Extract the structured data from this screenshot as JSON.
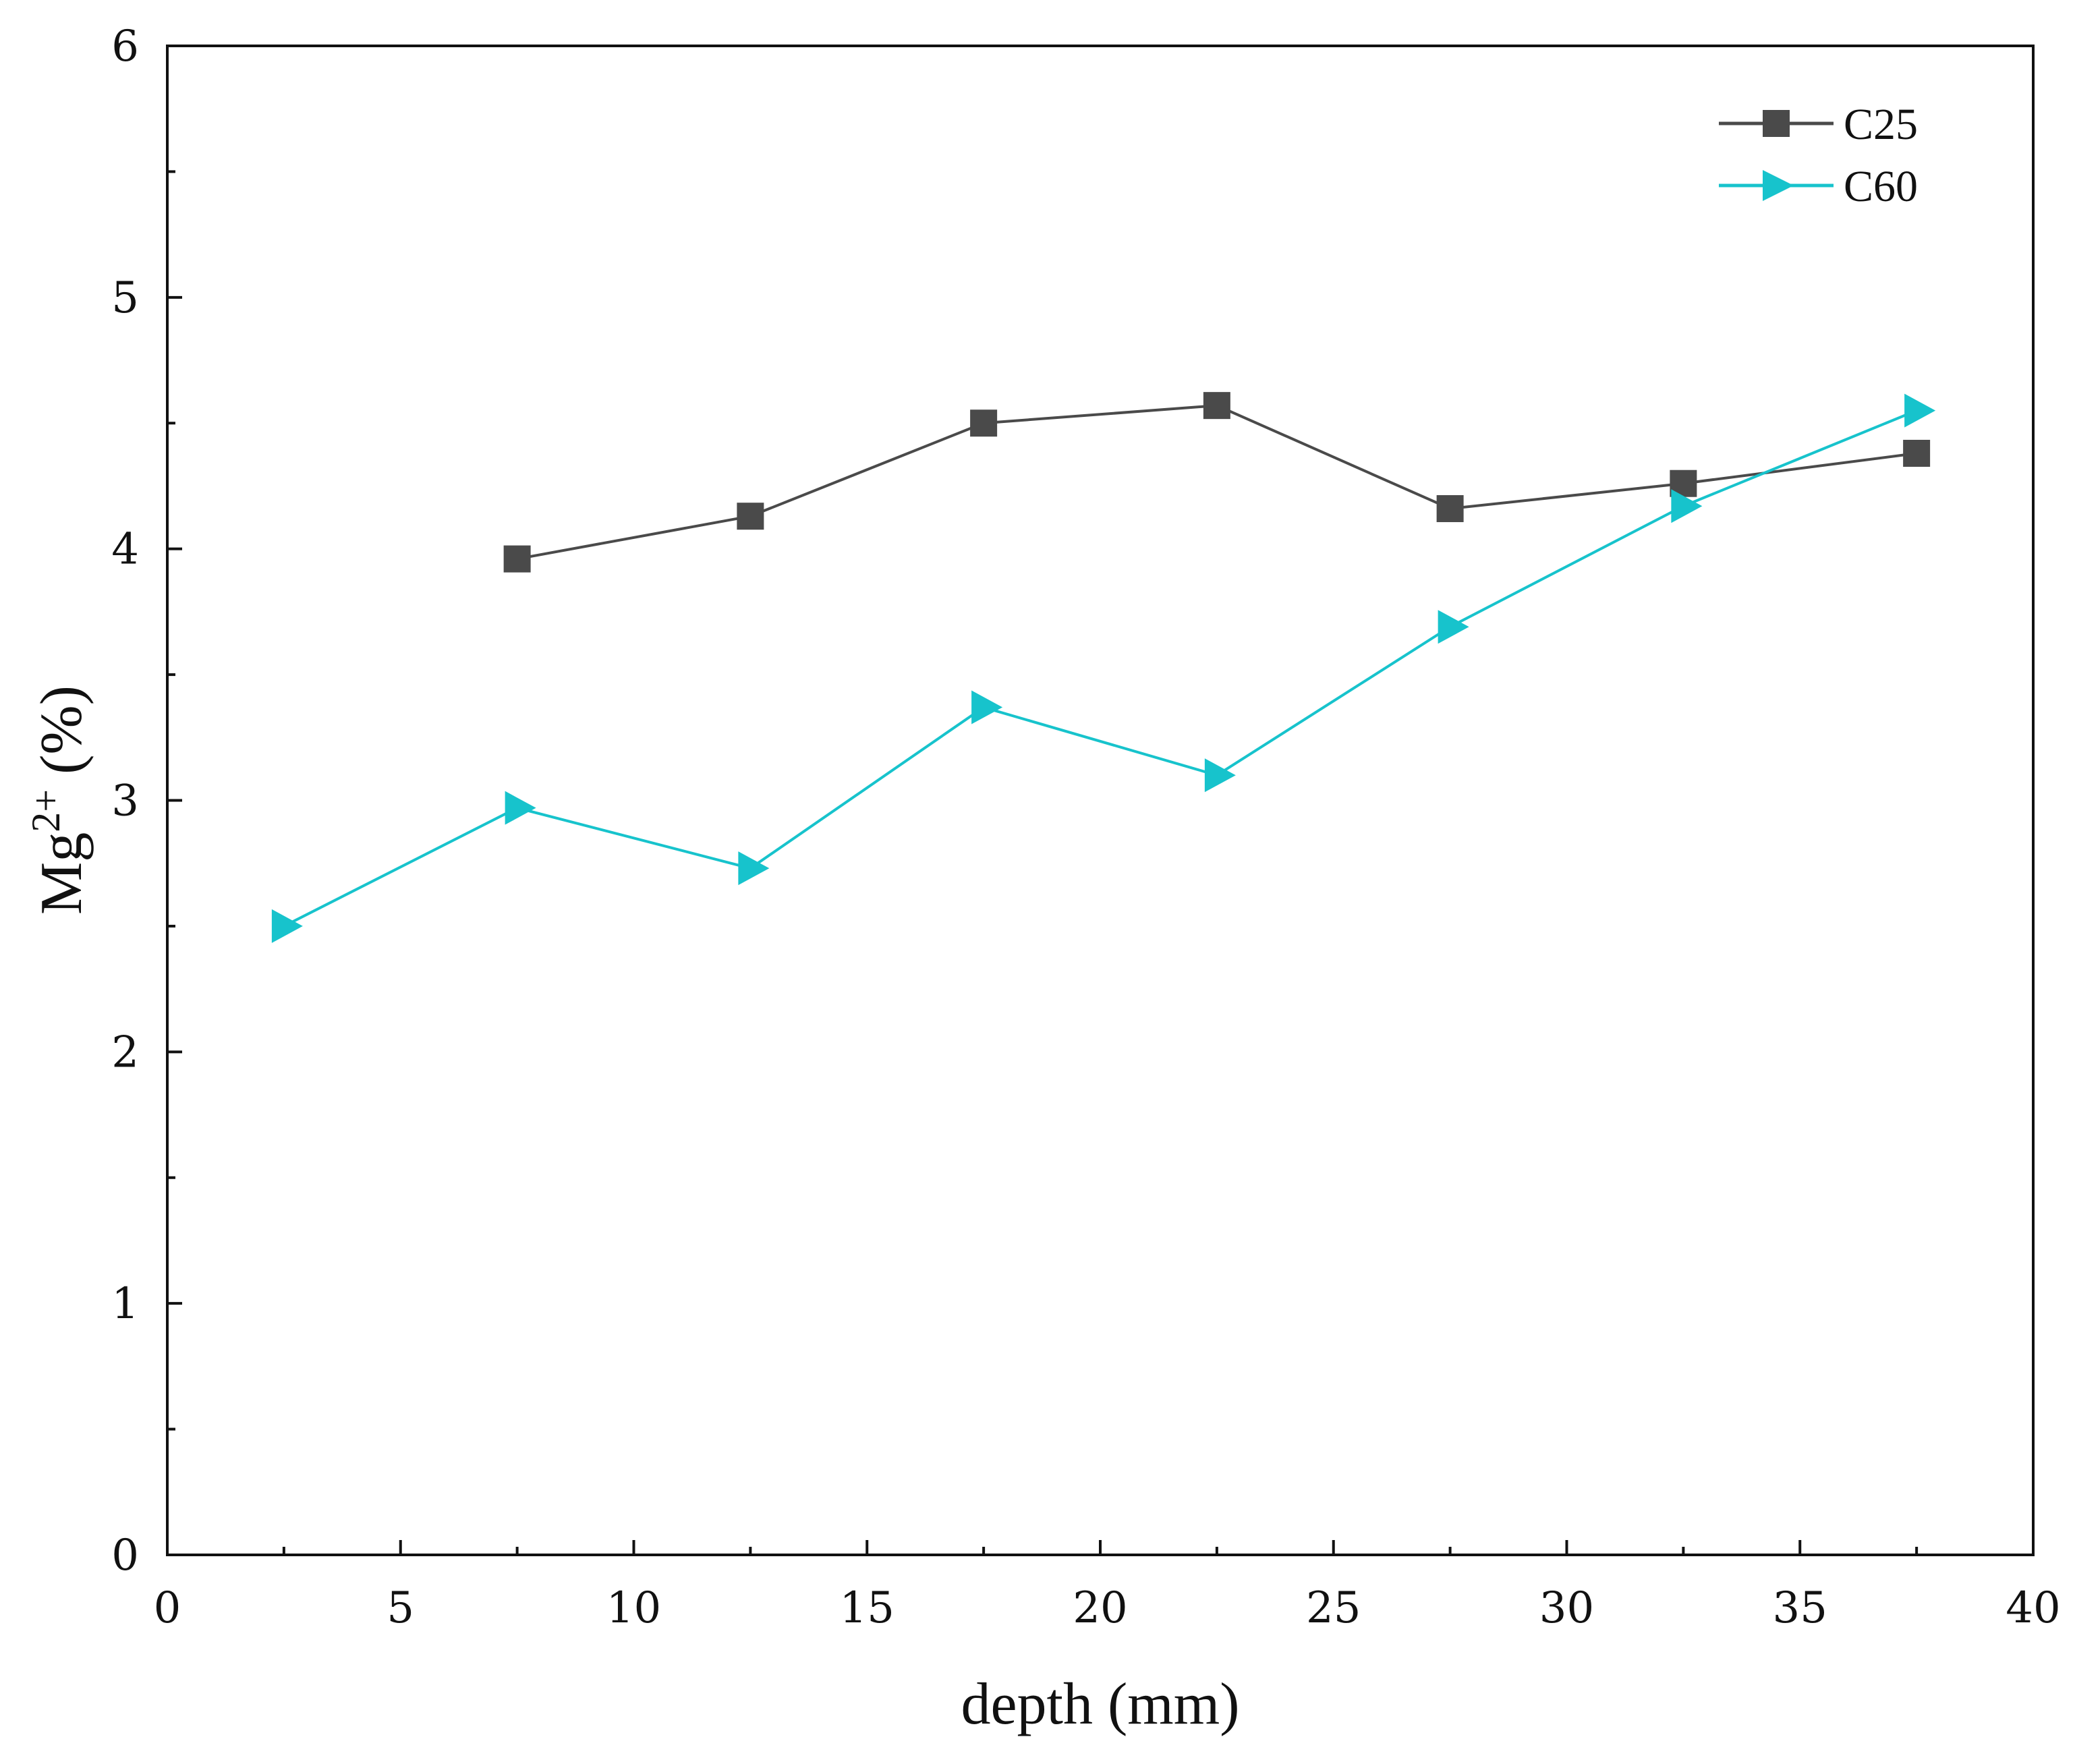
{
  "chart_data": {
    "type": "line",
    "title": "",
    "xlabel": "depth (mm)",
    "ylabel": {
      "base": "Mg",
      "superscript": "2+",
      "suffix": " (%)"
    },
    "xlim": [
      0,
      40
    ],
    "ylim": [
      0,
      6
    ],
    "x_ticks": [
      "0",
      "5",
      "10",
      "15",
      "20",
      "25",
      "30",
      "35",
      "40"
    ],
    "y_ticks": [
      "0",
      "1",
      "2",
      "3",
      "4",
      "5",
      "6"
    ],
    "grid": false,
    "legend_position": "top-right",
    "series": [
      {
        "name": "C25",
        "marker": "square",
        "color": "#4a4a4a",
        "x": [
          7.5,
          12.5,
          17.5,
          22.5,
          27.5,
          32.5,
          37.5
        ],
        "y": [
          3.96,
          4.13,
          4.5,
          4.57,
          4.16,
          4.26,
          4.38
        ]
      },
      {
        "name": "C60",
        "marker": "triangle-right",
        "color": "#17c3cc",
        "x": [
          2.5,
          7.5,
          12.5,
          17.5,
          22.5,
          27.5,
          32.5,
          37.5
        ],
        "y": [
          2.5,
          2.97,
          2.73,
          3.37,
          3.1,
          3.69,
          4.17,
          4.55
        ]
      }
    ]
  }
}
